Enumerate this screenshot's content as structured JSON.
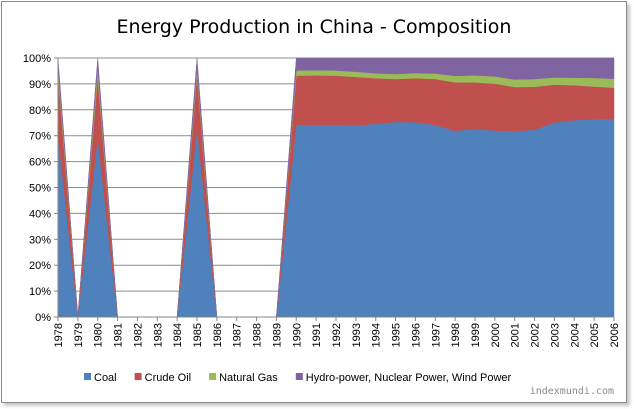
{
  "chart_data": {
    "type": "area",
    "stacked": "percent",
    "title": "Energy Production in China - Composition",
    "xlabel": "",
    "ylabel": "",
    "ylim": [
      0,
      100
    ],
    "y_ticks": [
      "0%",
      "10%",
      "20%",
      "30%",
      "40%",
      "50%",
      "60%",
      "70%",
      "80%",
      "90%",
      "100%"
    ],
    "grid": "horizontal",
    "legend_position": "bottom",
    "categories": [
      "1978",
      "1979",
      "1980",
      "1981",
      "1982",
      "1983",
      "1984",
      "1985",
      "1986",
      "1987",
      "1988",
      "1989",
      "1990",
      "1991",
      "1992",
      "1993",
      "1994",
      "1995",
      "1996",
      "1997",
      "1998",
      "1999",
      "2000",
      "2001",
      "2002",
      "2003",
      "2004",
      "2005",
      "2006"
    ],
    "series": [
      {
        "name": "Coal",
        "color": "#4f81bd",
        "values": [
          70.3,
          0,
          69.4,
          0,
          0,
          0,
          0,
          72.8,
          0,
          0,
          0,
          0,
          74.2,
          74.1,
          74.3,
          74.0,
          74.6,
          75.3,
          75.2,
          74.1,
          71.9,
          72.6,
          72.0,
          71.8,
          72.3,
          75.1,
          76.0,
          76.4,
          76.6
        ]
      },
      {
        "name": "Crude Oil",
        "color": "#c0504d",
        "values": [
          23.7,
          0,
          23.8,
          0,
          0,
          0,
          0,
          20.9,
          0,
          0,
          0,
          0,
          19.0,
          19.2,
          18.9,
          18.7,
          17.6,
          16.6,
          17.0,
          17.8,
          18.7,
          18.0,
          18.1,
          17.0,
          16.6,
          14.6,
          13.5,
          12.6,
          11.9
        ]
      },
      {
        "name": "Natural Gas",
        "color": "#9bbb59",
        "values": [
          2.9,
          0,
          3.0,
          0,
          0,
          0,
          0,
          2.0,
          0,
          0,
          0,
          0,
          2.0,
          2.0,
          2.0,
          2.0,
          1.9,
          1.9,
          2.0,
          2.1,
          2.5,
          2.7,
          2.8,
          2.9,
          3.0,
          2.8,
          2.9,
          3.3,
          3.5
        ]
      },
      {
        "name": "Hydro-power, Nuclear Power, Wind Power",
        "color": "#8064a2",
        "values": [
          3.1,
          0,
          3.8,
          0,
          0,
          0,
          0,
          4.3,
          0,
          0,
          0,
          0,
          4.8,
          4.7,
          4.8,
          5.3,
          5.9,
          6.2,
          5.8,
          6.0,
          6.9,
          6.7,
          7.1,
          8.3,
          8.1,
          7.5,
          7.6,
          7.7,
          8.0
        ]
      }
    ]
  },
  "watermark": "indexmundi.com"
}
